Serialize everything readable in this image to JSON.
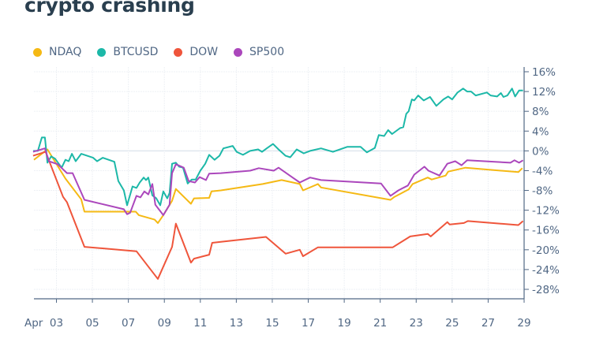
{
  "chart_data": {
    "type": "line",
    "title": "crypto crashing",
    "xlabel": "",
    "ylabel": "",
    "x_unit": "day of April",
    "xlim": [
      1.75,
      29
    ],
    "ylim": [
      -28,
      16
    ],
    "x_ticks": [
      3,
      5,
      7,
      9,
      11,
      13,
      15,
      17,
      19,
      21,
      23,
      25,
      27,
      29
    ],
    "x_tick_labels": [
      "03",
      "05",
      "07",
      "09",
      "11",
      "13",
      "15",
      "17",
      "19",
      "21",
      "23",
      "25",
      "27",
      "29"
    ],
    "x_month_label": "Apr",
    "y_ticks": [
      16,
      12,
      8,
      4,
      0,
      -4,
      -8,
      -12,
      -16,
      -20,
      -24,
      -28
    ],
    "y_tick_labels": [
      "16%",
      "12%",
      "8%",
      "4%",
      "0%",
      "-4%",
      "-8%",
      "-12%",
      "-16%",
      "-20%",
      "-24%",
      "-28%"
    ],
    "y_axis_side": "right",
    "grid": true,
    "legend_position": "top-left",
    "series": [
      {
        "name": "NDAQ",
        "color": "#f5b914",
        "points": [
          [
            1.75,
            -1.8
          ],
          [
            2.5,
            0.3
          ],
          [
            3.5,
            -5.6
          ],
          [
            4.38,
            -9.8
          ],
          [
            4.56,
            -12.3
          ],
          [
            7.41,
            -12.3
          ],
          [
            7.58,
            -13
          ],
          [
            8.46,
            -13.9
          ],
          [
            8.64,
            -14.6
          ],
          [
            8.94,
            -13
          ],
          [
            9.43,
            -10.1
          ],
          [
            9.64,
            -7.7
          ],
          [
            10.48,
            -10.7
          ],
          [
            10.65,
            -9.6
          ],
          [
            11.49,
            -9.5
          ],
          [
            11.62,
            -8.2
          ],
          [
            12.14,
            -8
          ],
          [
            14.47,
            -6.7
          ],
          [
            15.52,
            -5.9
          ],
          [
            16.53,
            -6.7
          ],
          [
            16.71,
            -8
          ],
          [
            17.54,
            -6.7
          ],
          [
            17.71,
            -7.4
          ],
          [
            21.57,
            -9.9
          ],
          [
            21.79,
            -9.3
          ],
          [
            22.58,
            -7.8
          ],
          [
            22.8,
            -6.7
          ],
          [
            23.64,
            -5.4
          ],
          [
            23.86,
            -5.8
          ],
          [
            24.64,
            -5
          ],
          [
            24.78,
            -4.2
          ],
          [
            25.74,
            -3.4
          ],
          [
            28.68,
            -4.3
          ],
          [
            28.9,
            -3.5
          ]
        ]
      },
      {
        "name": "BTCUSD",
        "color": "#1cb8a8",
        "points": [
          [
            1.71,
            0
          ],
          [
            1.97,
            0
          ],
          [
            2.19,
            2.7
          ],
          [
            2.36,
            2.7
          ],
          [
            2.5,
            -2.4
          ],
          [
            2.71,
            -1.1
          ],
          [
            2.93,
            -1.6
          ],
          [
            3.29,
            -3.4
          ],
          [
            3.5,
            -1.8
          ],
          [
            3.68,
            -2.1
          ],
          [
            3.86,
            -0.6
          ],
          [
            4.07,
            -2.1
          ],
          [
            4.38,
            -0.6
          ],
          [
            5.04,
            -1.4
          ],
          [
            5.26,
            -2.1
          ],
          [
            5.57,
            -1.4
          ],
          [
            6.22,
            -2.2
          ],
          [
            6.44,
            -6.1
          ],
          [
            6.75,
            -8
          ],
          [
            6.93,
            -11
          ],
          [
            7.23,
            -7.2
          ],
          [
            7.45,
            -7.5
          ],
          [
            7.63,
            -6.4
          ],
          [
            7.85,
            -5.4
          ],
          [
            7.98,
            -5.9
          ],
          [
            8.11,
            -5.4
          ],
          [
            8.33,
            -9
          ],
          [
            8.55,
            -9.6
          ],
          [
            8.77,
            -11
          ],
          [
            8.94,
            -8.2
          ],
          [
            9.16,
            -9.6
          ],
          [
            9.29,
            -8.5
          ],
          [
            9.43,
            -2.6
          ],
          [
            9.64,
            -2.4
          ],
          [
            9.82,
            -3.2
          ],
          [
            10.04,
            -3.4
          ],
          [
            10.3,
            -6.6
          ],
          [
            10.52,
            -5.8
          ],
          [
            10.74,
            -5.8
          ],
          [
            11,
            -4
          ],
          [
            11.27,
            -2.6
          ],
          [
            11.49,
            -0.8
          ],
          [
            11.79,
            -1.8
          ],
          [
            12.06,
            -1
          ],
          [
            12.28,
            0.5
          ],
          [
            12.8,
            1
          ],
          [
            13.02,
            -0.2
          ],
          [
            13.37,
            -0.8
          ],
          [
            13.77,
            0
          ],
          [
            14.21,
            0.3
          ],
          [
            14.43,
            -0.2
          ],
          [
            14.69,
            0.5
          ],
          [
            15.04,
            1.4
          ],
          [
            15.35,
            0.3
          ],
          [
            15.74,
            -1
          ],
          [
            16.0,
            -1.3
          ],
          [
            16.36,
            0.3
          ],
          [
            16.75,
            -0.5
          ],
          [
            17.1,
            0
          ],
          [
            17.71,
            0.5
          ],
          [
            18.37,
            -0.2
          ],
          [
            19.16,
            0.8
          ],
          [
            19.91,
            0.8
          ],
          [
            20.26,
            -0.3
          ],
          [
            20.7,
            0.6
          ],
          [
            20.92,
            3.2
          ],
          [
            21.22,
            3
          ],
          [
            21.44,
            4.2
          ],
          [
            21.66,
            3.4
          ],
          [
            22.1,
            4.6
          ],
          [
            22.28,
            4.8
          ],
          [
            22.45,
            7.5
          ],
          [
            22.58,
            8
          ],
          [
            22.76,
            10.4
          ],
          [
            22.89,
            10.2
          ],
          [
            23.11,
            11.2
          ],
          [
            23.42,
            10.2
          ],
          [
            23.77,
            10.9
          ],
          [
            24.12,
            9.1
          ],
          [
            24.51,
            10.4
          ],
          [
            24.78,
            11
          ],
          [
            25,
            10.4
          ],
          [
            25.3,
            11.8
          ],
          [
            25.61,
            12.6
          ],
          [
            25.83,
            12
          ],
          [
            26.05,
            12
          ],
          [
            26.31,
            11.2
          ],
          [
            26.93,
            11.8
          ],
          [
            27.14,
            11.2
          ],
          [
            27.5,
            11
          ],
          [
            27.71,
            11.7
          ],
          [
            27.85,
            10.9
          ],
          [
            28.07,
            11.2
          ],
          [
            28.33,
            12.6
          ],
          [
            28.5,
            11
          ],
          [
            28.72,
            12.2
          ],
          [
            28.94,
            12.2
          ]
        ]
      },
      {
        "name": "DOW",
        "color": "#ef553b",
        "points": [
          [
            1.7,
            -1
          ],
          [
            2.4,
            -0.2
          ],
          [
            3.37,
            -9.3
          ],
          [
            3.59,
            -10.4
          ],
          [
            4.56,
            -19.4
          ],
          [
            7.45,
            -20.3
          ],
          [
            8.64,
            -25.9
          ],
          [
            9.43,
            -19.4
          ],
          [
            9.64,
            -14.7
          ],
          [
            10.48,
            -22.6
          ],
          [
            10.65,
            -21.8
          ],
          [
            11.49,
            -21
          ],
          [
            11.66,
            -18.6
          ],
          [
            12.14,
            -18.4
          ],
          [
            14.65,
            -17.4
          ],
          [
            15.74,
            -20.8
          ],
          [
            16.53,
            -20
          ],
          [
            16.71,
            -21.3
          ],
          [
            17.54,
            -19.5
          ],
          [
            21.7,
            -19.5
          ],
          [
            22.67,
            -17.3
          ],
          [
            23.64,
            -16.8
          ],
          [
            23.81,
            -17.3
          ],
          [
            24.73,
            -14.4
          ],
          [
            24.86,
            -14.9
          ],
          [
            25.65,
            -14.6
          ],
          [
            25.87,
            -14.2
          ],
          [
            28.68,
            -15
          ],
          [
            28.94,
            -14.2
          ]
        ]
      },
      {
        "name": "SP500",
        "color": "#ab47bc",
        "points": [
          [
            1.7,
            -0.2
          ],
          [
            2.36,
            0.5
          ],
          [
            2.58,
            -2.1
          ],
          [
            3.07,
            -2.7
          ],
          [
            3.59,
            -4.5
          ],
          [
            3.9,
            -4.5
          ],
          [
            4.56,
            -9.9
          ],
          [
            6.75,
            -11.8
          ],
          [
            6.93,
            -12.8
          ],
          [
            7.1,
            -12.5
          ],
          [
            7.45,
            -9.1
          ],
          [
            7.67,
            -9.4
          ],
          [
            7.89,
            -8.2
          ],
          [
            8.11,
            -8.8
          ],
          [
            8.33,
            -6.7
          ],
          [
            8.5,
            -10.9
          ],
          [
            8.94,
            -13
          ],
          [
            9.29,
            -10.9
          ],
          [
            9.43,
            -4.5
          ],
          [
            9.64,
            -2.7
          ],
          [
            10.08,
            -3.4
          ],
          [
            10.35,
            -6.1
          ],
          [
            10.7,
            -6.4
          ],
          [
            10.96,
            -5.3
          ],
          [
            11.31,
            -5.9
          ],
          [
            11.49,
            -4.6
          ],
          [
            12.14,
            -4.5
          ],
          [
            13.77,
            -4
          ],
          [
            14.25,
            -3.5
          ],
          [
            15.08,
            -4
          ],
          [
            15.35,
            -3.4
          ],
          [
            16.09,
            -5.3
          ],
          [
            16.53,
            -6.4
          ],
          [
            17.1,
            -5.4
          ],
          [
            17.71,
            -5.9
          ],
          [
            21.05,
            -6.6
          ],
          [
            21.57,
            -9.1
          ],
          [
            22.01,
            -8
          ],
          [
            22.54,
            -7
          ],
          [
            22.89,
            -4.8
          ],
          [
            23.46,
            -3.2
          ],
          [
            23.68,
            -4
          ],
          [
            24.29,
            -5
          ],
          [
            24.73,
            -2.6
          ],
          [
            25.17,
            -2.1
          ],
          [
            25.52,
            -2.9
          ],
          [
            25.83,
            -1.9
          ],
          [
            28.24,
            -2.4
          ],
          [
            28.46,
            -1.9
          ],
          [
            28.72,
            -2.4
          ],
          [
            28.94,
            -1.9
          ]
        ]
      }
    ]
  }
}
